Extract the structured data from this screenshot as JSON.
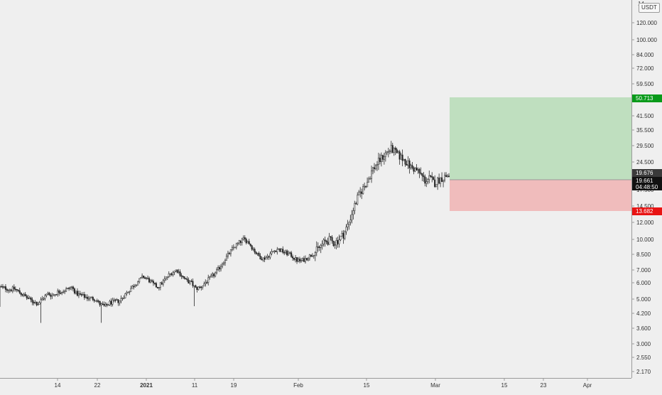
{
  "price_axis": {
    "currency": "USDT",
    "ticks": [
      "120.000",
      "100.000",
      "84.000",
      "72.000",
      "59.500",
      "41.500",
      "35.500",
      "29.500",
      "24.500",
      "17.500",
      "14.500",
      "12.000",
      "10.000",
      "8.500",
      "7.000",
      "6.000",
      "5.000",
      "4.200",
      "3.600",
      "3.000",
      "2.550",
      "2.170"
    ],
    "top_cut_label": "14..."
  },
  "time_axis": {
    "ticks": [
      {
        "label": "14",
        "bold": false
      },
      {
        "label": "22",
        "bold": false
      },
      {
        "label": "2021",
        "bold": true
      },
      {
        "label": "11",
        "bold": false
      },
      {
        "label": "19",
        "bold": false
      },
      {
        "label": "Feb",
        "bold": false
      },
      {
        "label": "15",
        "bold": false
      },
      {
        "label": "Mar",
        "bold": false
      },
      {
        "label": "15",
        "bold": false
      },
      {
        "label": "23",
        "bold": false
      },
      {
        "label": "Apr",
        "bold": false
      }
    ]
  },
  "markers": {
    "target": {
      "value": "50.713",
      "color": "#089a1a"
    },
    "last_price": {
      "value": "19.676",
      "color": "#3a3a3a"
    },
    "current": {
      "value": "19.661",
      "countdown": "04:48:50",
      "color": "#111111"
    },
    "stop": {
      "value": "13.682",
      "color": "#e81414"
    }
  },
  "position_tool": {
    "entry": 19.661,
    "target": 50.713,
    "stop": 13.682,
    "profit_color": "#bfdfbf",
    "loss_color": "#f0bcbc"
  },
  "chart_data": {
    "type": "candlestick",
    "scale": "log",
    "ylim": [
      1.95,
      150
    ],
    "x_ticks": [
      "14",
      "22",
      "2021",
      "11",
      "19",
      "Feb",
      "15",
      "Mar",
      "15",
      "23",
      "Apr"
    ],
    "series": [
      {
        "kind": "close_path",
        "values": [
          5.6,
          5.55,
          5.45,
          5.5,
          5.3,
          5.1,
          4.9,
          4.75,
          4.65,
          4.95,
          5.2,
          5.1,
          5.3,
          5.35,
          5.45,
          5.6,
          5.2,
          5.1,
          5.0,
          4.95,
          4.9,
          4.6,
          4.5,
          4.7,
          4.75,
          4.8,
          5.1,
          5.4,
          5.7,
          6.0,
          6.3,
          6.1,
          5.8,
          5.6,
          5.9,
          6.3,
          6.6,
          6.8,
          6.4,
          6.0,
          5.9,
          5.5,
          5.6,
          5.9,
          6.2,
          6.5,
          7.0,
          7.6,
          8.2,
          8.8,
          9.2,
          9.6,
          9.3,
          8.6,
          8.0,
          7.7,
          7.9,
          8.3,
          8.6,
          8.4,
          8.2,
          8.0,
          7.6,
          7.5,
          7.7,
          8.0,
          8.3,
          8.8,
          9.3,
          9.5,
          9.2,
          9.6,
          10.2,
          11.5,
          13.5,
          15.5,
          17.0,
          18.5,
          21.0,
          22.5,
          24.0,
          25.5,
          26.5,
          25.0,
          24.0,
          23.0,
          21.5,
          21.0,
          20.0,
          18.5,
          19.0,
          18.0,
          18.8,
          19.3,
          19.661
        ]
      }
    ]
  }
}
